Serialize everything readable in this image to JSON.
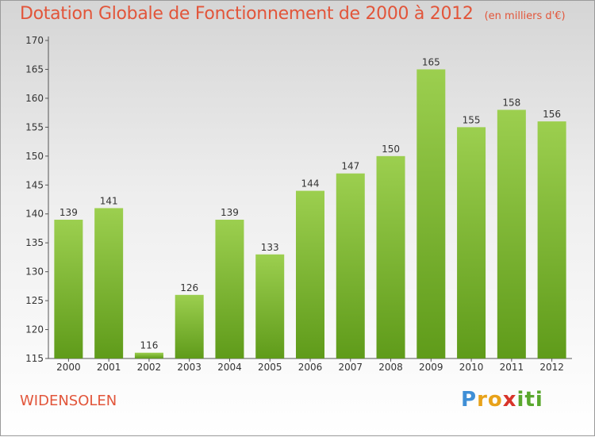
{
  "title": "Dotation Globale de Fonctionnement de 2000 à 2012",
  "unit_label": "(en milliers d'€)",
  "commune": "WIDENSOLEN",
  "logo": {
    "text": "Proxiti",
    "letters": [
      {
        "ch": "P",
        "color": "#3f8fd6"
      },
      {
        "ch": "r",
        "color": "#e8a21a"
      },
      {
        "ch": "o",
        "color": "#e8a21a"
      },
      {
        "ch": "x",
        "color": "#d8342a"
      },
      {
        "ch": "i",
        "color": "#5aa82e"
      },
      {
        "ch": "t",
        "color": "#5aa82e"
      },
      {
        "ch": "i",
        "color": "#5aa82e"
      }
    ]
  },
  "chart_data": {
    "type": "bar",
    "title": "Dotation Globale de Fonctionnement de 2000 à 2012",
    "categories": [
      "2000",
      "2001",
      "2002",
      "2003",
      "2004",
      "2005",
      "2006",
      "2007",
      "2008",
      "2009",
      "2010",
      "2011",
      "2012"
    ],
    "values": [
      139,
      141,
      116,
      126,
      139,
      133,
      144,
      147,
      150,
      165,
      155,
      158,
      156
    ],
    "ylim": [
      115,
      170
    ],
    "yticks": [
      115,
      120,
      125,
      130,
      135,
      140,
      145,
      150,
      155,
      160,
      165,
      170
    ],
    "bar_color_top": "#9ccf4f",
    "bar_color_bottom": "#5f9b1a",
    "grid": false
  }
}
